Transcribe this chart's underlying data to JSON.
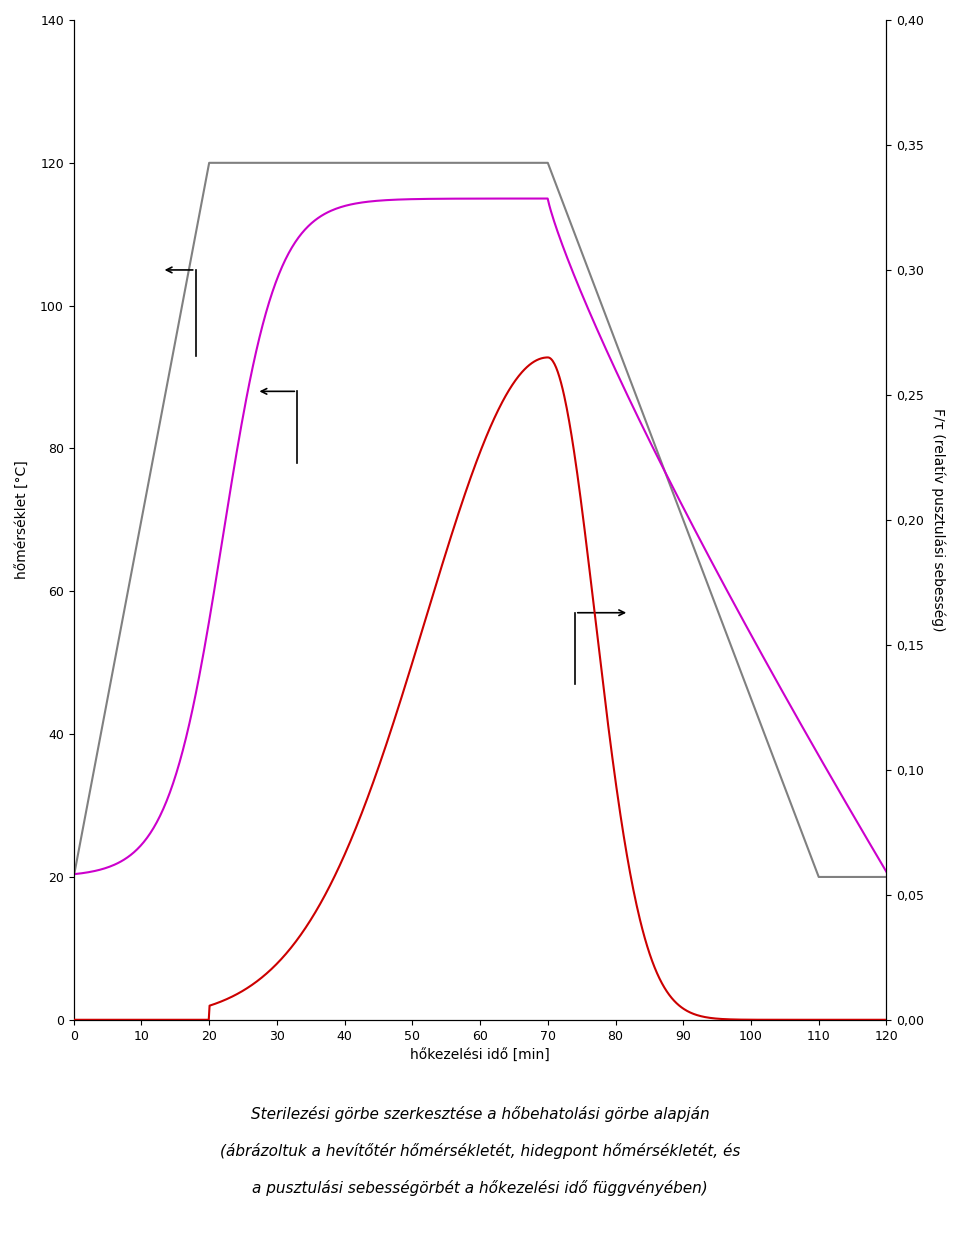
{
  "title": "",
  "xlabel": "hőkezelési idő [min]",
  "ylabel_left": "hőmérséklet [°C]",
  "ylabel_right": "F/τ (relatív pusztulási sebesség)",
  "xlim": [
    0,
    120
  ],
  "ylim_left": [
    0,
    140
  ],
  "ylim_right": [
    0,
    0.4
  ],
  "yticks_left": [
    0,
    20,
    40,
    60,
    80,
    100,
    120,
    140
  ],
  "yticks_right": [
    0.0,
    0.05,
    0.1,
    0.15,
    0.2,
    0.25,
    0.3,
    0.35,
    0.4
  ],
  "xticks": [
    0,
    10,
    20,
    30,
    40,
    50,
    60,
    70,
    80,
    90,
    100,
    110,
    120
  ],
  "sterilizer_color": "#808080",
  "heat_penetration_color": "#cc00cc",
  "destruction_color": "#cc0000",
  "arrow_color": "#000000",
  "background_color": "#ffffff",
  "caption_line1": "Sterilezési görbe szerkesztése a hőbehatolási görbe alapján",
  "caption_line2": "(ábrázoltuk a hevítőtér hőmérsékletét, hidegpont hőmérsékletét, és",
  "caption_line3": "a pusztulási sebességörbét a hőkezelési idő függvényében)"
}
